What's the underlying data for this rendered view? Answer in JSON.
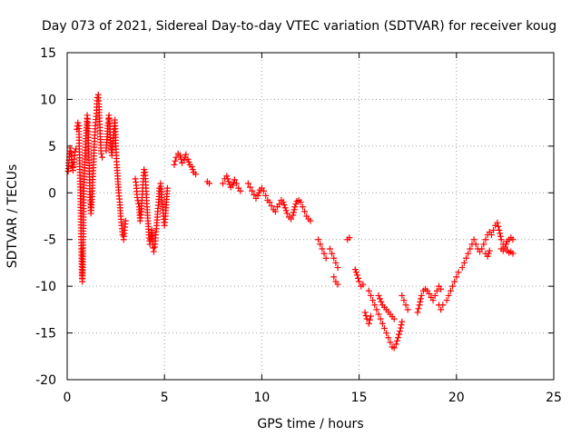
{
  "chart_data": {
    "type": "scatter",
    "title": "Day 073 of 2021, Sidereal Day-to-day VTEC variation (SDTVAR) for receiver koug",
    "xlabel": "GPS time / hours",
    "ylabel": "SDTVAR / TECUs",
    "xlim": [
      0,
      25
    ],
    "ylim": [
      -20,
      15
    ],
    "xticks": [
      0,
      5,
      10,
      15,
      20,
      25
    ],
    "yticks": [
      -20,
      -15,
      -10,
      -5,
      0,
      5,
      10,
      15
    ],
    "grid": true,
    "marker": "+",
    "color": "#ff0000",
    "series": [
      {
        "name": "koug",
        "segments": [
          [
            [
              0.05,
              2.3
            ],
            [
              0.1,
              3.5
            ],
            [
              0.15,
              4.8
            ],
            [
              0.2,
              4.3
            ],
            [
              0.25,
              3.2
            ],
            [
              0.3,
              2.4
            ],
            [
              0.35,
              3.6
            ],
            [
              0.4,
              4.4
            ],
            [
              0.45,
              4.7
            ]
          ],
          [
            [
              0.5,
              6.8
            ],
            [
              0.55,
              7.5
            ],
            [
              0.6,
              7.2
            ],
            [
              0.62,
              5.0
            ],
            [
              0.65,
              2.5
            ],
            [
              0.68,
              0.0
            ],
            [
              0.7,
              -2.5
            ],
            [
              0.72,
              -5.0
            ],
            [
              0.74,
              -7.0
            ],
            [
              0.76,
              -8.8
            ],
            [
              0.78,
              -9.5
            ],
            [
              0.8,
              -8.0
            ],
            [
              0.82,
              -5.0
            ],
            [
              0.84,
              -2.0
            ],
            [
              0.86,
              0.5
            ],
            [
              0.9,
              3.0
            ],
            [
              0.95,
              5.5
            ],
            [
              1.0,
              7.0
            ],
            [
              1.03,
              8.3
            ],
            [
              1.06,
              7.5
            ],
            [
              1.1,
              5.0
            ],
            [
              1.14,
              2.0
            ],
            [
              1.18,
              -0.5
            ],
            [
              1.22,
              -2.2
            ],
            [
              1.26,
              -1.0
            ],
            [
              1.3,
              0.8
            ],
            [
              1.35,
              3.0
            ],
            [
              1.4,
              5.5
            ],
            [
              1.45,
              7.2
            ],
            [
              1.5,
              8.5
            ],
            [
              1.55,
              10.2
            ],
            [
              1.6,
              10.5
            ],
            [
              1.63,
              9.5
            ],
            [
              1.66,
              8.0
            ],
            [
              1.7,
              6.0
            ],
            [
              1.75,
              4.2
            ],
            [
              1.8,
              3.8
            ]
          ],
          [
            [
              2.0,
              4.5
            ],
            [
              2.05,
              6.0
            ],
            [
              2.1,
              7.5
            ],
            [
              2.15,
              8.3
            ],
            [
              2.2,
              6.5
            ],
            [
              2.25,
              5.0
            ],
            [
              2.3,
              4.0
            ],
            [
              2.35,
              5.5
            ],
            [
              2.4,
              6.5
            ],
            [
              2.45,
              7.8
            ],
            [
              2.5,
              5.0
            ],
            [
              2.55,
              3.0
            ],
            [
              2.6,
              1.5
            ],
            [
              2.65,
              0.0
            ],
            [
              2.7,
              -1.0
            ],
            [
              2.75,
              -2.5
            ],
            [
              2.8,
              -3.5
            ],
            [
              2.85,
              -4.5
            ],
            [
              2.9,
              -5.0
            ],
            [
              2.95,
              -4.0
            ],
            [
              3.0,
              -3.0
            ]
          ],
          [
            [
              3.5,
              1.5
            ],
            [
              3.55,
              0.8
            ],
            [
              3.6,
              -0.5
            ],
            [
              3.7,
              -1.5
            ],
            [
              3.75,
              -3.0
            ],
            [
              3.8,
              -2.0
            ],
            [
              3.85,
              -0.5
            ],
            [
              3.9,
              1.2
            ],
            [
              3.95,
              2.5
            ],
            [
              4.0,
              2.2
            ],
            [
              4.05,
              0.5
            ],
            [
              4.1,
              -1.5
            ],
            [
              4.15,
              -3.0
            ],
            [
              4.2,
              -4.5
            ],
            [
              4.25,
              -5.5
            ],
            [
              4.3,
              -5.0
            ],
            [
              4.35,
              -4.0
            ],
            [
              4.4,
              -5.5
            ],
            [
              4.45,
              -6.3
            ],
            [
              4.5,
              -5.8
            ],
            [
              4.55,
              -4.5
            ],
            [
              4.6,
              -3.5
            ],
            [
              4.65,
              -2.0
            ],
            [
              4.7,
              -1.0
            ],
            [
              4.75,
              0.5
            ],
            [
              4.8,
              1.0
            ],
            [
              4.85,
              -0.2
            ],
            [
              4.9,
              -1.5
            ],
            [
              4.95,
              -2.5
            ],
            [
              5.0,
              -3.5
            ],
            [
              5.05,
              -2.5
            ],
            [
              5.1,
              -1.0
            ],
            [
              5.15,
              0.5
            ]
          ],
          [
            [
              5.5,
              3.0
            ],
            [
              5.6,
              3.8
            ],
            [
              5.7,
              4.2
            ],
            [
              5.8,
              4.0
            ],
            [
              5.9,
              3.2
            ],
            [
              6.0,
              3.5
            ],
            [
              6.1,
              4.1
            ],
            [
              6.2,
              3.6
            ],
            [
              6.3,
              3.0
            ],
            [
              6.4,
              2.8
            ],
            [
              6.5,
              2.2
            ],
            [
              6.6,
              2.0
            ]
          ],
          [
            [
              7.2,
              1.2
            ],
            [
              7.3,
              1.0
            ]
          ],
          [
            [
              8.0,
              1.0
            ],
            [
              8.1,
              1.5
            ],
            [
              8.2,
              1.8
            ],
            [
              8.3,
              1.2
            ],
            [
              8.4,
              0.6
            ],
            [
              8.5,
              0.8
            ],
            [
              8.6,
              1.4
            ],
            [
              8.7,
              1.0
            ],
            [
              8.8,
              0.5
            ],
            [
              8.9,
              0.2
            ]
          ],
          [
            [
              9.3,
              1.0
            ],
            [
              9.4,
              0.6
            ],
            [
              9.5,
              0.2
            ],
            [
              9.6,
              -0.2
            ],
            [
              9.7,
              -0.6
            ],
            [
              9.8,
              -0.3
            ],
            [
              9.9,
              0.3
            ],
            [
              10.0,
              0.5
            ],
            [
              10.1,
              0.2
            ],
            [
              10.2,
              -0.3
            ],
            [
              10.3,
              -0.8
            ],
            [
              10.4,
              -1.0
            ],
            [
              10.5,
              -1.4
            ],
            [
              10.6,
              -1.8
            ],
            [
              10.7,
              -2.0
            ],
            [
              10.8,
              -1.5
            ],
            [
              10.9,
              -1.2
            ],
            [
              11.0,
              -0.8
            ],
            [
              11.1,
              -1.0
            ],
            [
              11.2,
              -1.6
            ],
            [
              11.3,
              -2.2
            ],
            [
              11.4,
              -2.6
            ],
            [
              11.5,
              -2.8
            ],
            [
              11.6,
              -2.4
            ],
            [
              11.7,
              -1.5
            ],
            [
              11.8,
              -0.9
            ],
            [
              11.9,
              -0.8
            ]
          ],
          [
            [
              12.0,
              -1.0
            ],
            [
              12.1,
              -1.5
            ],
            [
              12.2,
              -2.0
            ],
            [
              12.3,
              -2.5
            ],
            [
              12.4,
              -2.8
            ],
            [
              12.5,
              -3.0
            ]
          ],
          [
            [
              12.9,
              -5.0
            ],
            [
              13.0,
              -5.5
            ],
            [
              13.1,
              -6.0
            ],
            [
              13.2,
              -6.5
            ],
            [
              13.3,
              -7.0
            ]
          ],
          [
            [
              13.5,
              -6.0
            ],
            [
              13.6,
              -6.5
            ],
            [
              13.7,
              -7.0
            ],
            [
              13.8,
              -7.5
            ],
            [
              13.9,
              -8.0
            ]
          ],
          [
            [
              13.7,
              -9.0
            ],
            [
              13.8,
              -9.5
            ],
            [
              13.9,
              -9.8
            ]
          ],
          [
            [
              14.4,
              -5.0
            ],
            [
              14.5,
              -4.8
            ]
          ],
          [
            [
              14.8,
              -8.2
            ],
            [
              14.9,
              -8.8
            ],
            [
              15.0,
              -9.5
            ],
            [
              15.1,
              -10.0
            ],
            [
              15.2,
              -9.8
            ]
          ],
          [
            [
              15.5,
              -10.5
            ],
            [
              15.6,
              -11.0
            ],
            [
              15.7,
              -11.5
            ],
            [
              15.8,
              -12.0
            ],
            [
              15.9,
              -12.5
            ],
            [
              16.0,
              -13.0
            ],
            [
              16.1,
              -13.5
            ],
            [
              16.2,
              -14.0
            ],
            [
              16.3,
              -14.5
            ],
            [
              16.4,
              -15.0
            ],
            [
              16.5,
              -15.5
            ],
            [
              16.6,
              -16.0
            ],
            [
              16.7,
              -16.5
            ],
            [
              16.8,
              -16.6
            ],
            [
              16.9,
              -16.2
            ],
            [
              17.0,
              -15.5
            ],
            [
              17.1,
              -14.8
            ],
            [
              17.2,
              -13.8
            ]
          ],
          [
            [
              15.3,
              -12.8
            ],
            [
              15.4,
              -13.5
            ],
            [
              15.5,
              -14.0
            ],
            [
              15.6,
              -13.2
            ]
          ],
          [
            [
              16.0,
              -11.0
            ],
            [
              16.2,
              -12.0
            ],
            [
              16.4,
              -12.5
            ],
            [
              16.6,
              -13.0
            ],
            [
              16.8,
              -13.5
            ]
          ],
          [
            [
              17.2,
              -11.0
            ],
            [
              17.3,
              -11.5
            ],
            [
              17.4,
              -12.0
            ],
            [
              17.5,
              -12.5
            ]
          ],
          [
            [
              18.0,
              -12.8
            ],
            [
              18.1,
              -12.0
            ],
            [
              18.2,
              -11.0
            ],
            [
              18.3,
              -10.5
            ],
            [
              18.4,
              -10.3
            ],
            [
              18.5,
              -10.5
            ],
            [
              18.6,
              -10.8
            ],
            [
              18.7,
              -11.2
            ],
            [
              18.8,
              -11.5
            ],
            [
              18.9,
              -11.0
            ],
            [
              19.0,
              -10.5
            ],
            [
              19.1,
              -10.0
            ],
            [
              19.2,
              -10.3
            ]
          ],
          [
            [
              19.1,
              -12.0
            ],
            [
              19.2,
              -12.5
            ],
            [
              19.3,
              -12.0
            ]
          ],
          [
            [
              19.5,
              -11.5
            ],
            [
              19.6,
              -11.0
            ],
            [
              19.7,
              -10.5
            ],
            [
              19.8,
              -10.0
            ],
            [
              19.9,
              -9.5
            ],
            [
              20.0,
              -9.0
            ],
            [
              20.1,
              -8.5
            ]
          ],
          [
            [
              20.3,
              -8.0
            ],
            [
              20.4,
              -7.5
            ],
            [
              20.5,
              -7.0
            ],
            [
              20.6,
              -6.5
            ],
            [
              20.7,
              -6.0
            ],
            [
              20.8,
              -5.5
            ],
            [
              20.9,
              -5.0
            ],
            [
              21.0,
              -5.5
            ],
            [
              21.1,
              -6.0
            ],
            [
              21.2,
              -6.3
            ],
            [
              21.3,
              -6.0
            ],
            [
              21.4,
              -5.5
            ],
            [
              21.5,
              -5.0
            ],
            [
              21.6,
              -4.5
            ],
            [
              21.7,
              -4.2
            ],
            [
              21.8,
              -4.5
            ],
            [
              21.9,
              -4.0
            ],
            [
              22.0,
              -3.5
            ],
            [
              22.1,
              -3.2
            ],
            [
              22.2,
              -4.0
            ],
            [
              22.3,
              -5.0
            ],
            [
              22.4,
              -5.5
            ],
            [
              22.5,
              -5.8
            ],
            [
              22.6,
              -5.2
            ],
            [
              22.7,
              -5.0
            ],
            [
              22.8,
              -4.8
            ],
            [
              22.9,
              -5.0
            ]
          ],
          [
            [
              21.5,
              -6.5
            ],
            [
              21.6,
              -6.8
            ],
            [
              21.7,
              -6.2
            ]
          ],
          [
            [
              22.3,
              -6.0
            ],
            [
              22.4,
              -6.2
            ],
            [
              22.5,
              -6.0
            ],
            [
              22.6,
              -6.2
            ],
            [
              22.7,
              -6.4
            ],
            [
              22.8,
              -6.3
            ],
            [
              22.9,
              -6.5
            ]
          ]
        ]
      }
    ]
  }
}
